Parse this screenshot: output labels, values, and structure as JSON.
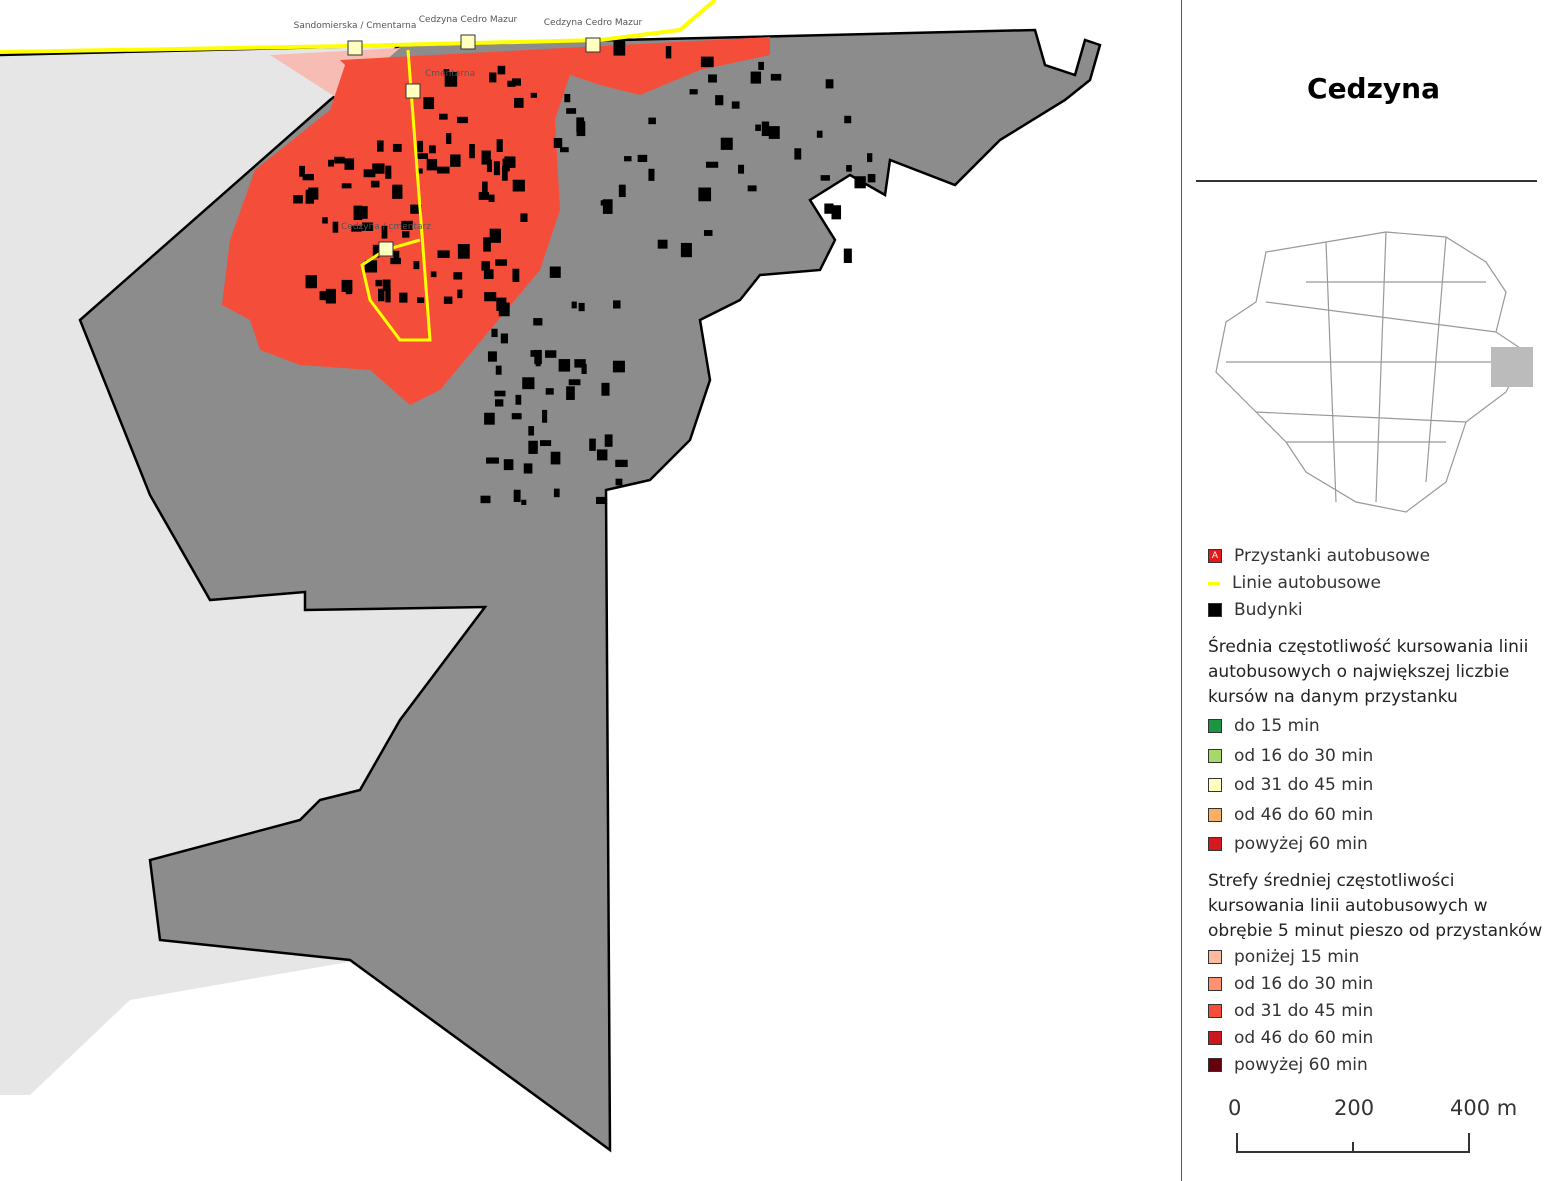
{
  "map": {
    "stop_labels": [
      "Sandomierska / Cmentarna",
      "Cedzyna Cedro Mazur",
      "Cedzyna Cedro Mazur",
      "Cmentarna",
      "Cedzyna / cmentarz"
    ]
  },
  "legend": {
    "title": "Cedzyna",
    "layers": [
      {
        "symbol": "A",
        "label": "Przystanki autobusowe",
        "color": "#e31a1c"
      },
      {
        "label": "Linie autobusowe",
        "color": "#ffff00"
      },
      {
        "label": "Budynki",
        "color": "#000000"
      }
    ],
    "frequency_title": "Średnia częstotliwość kursowania linii autobusowych o największej liczbie kursów na danym przystanku",
    "frequency_items": [
      {
        "label": "do 15 min",
        "color": "#1a9641"
      },
      {
        "label": "od 16 do 30 min",
        "color": "#a6d96a"
      },
      {
        "label": "od 31 do 45 min",
        "color": "#ffffc0"
      },
      {
        "label": "od 46 do 60 min",
        "color": "#fdae61"
      },
      {
        "label": "powyżej 60 min",
        "color": "#d7191c"
      }
    ],
    "zones_title": "Strefy średniej częstotliwości kursowania linii autobusowych w obrębie 5 minut pieszo od przystanków",
    "zones_items": [
      {
        "label": "poniżej 15 min",
        "color": "#fcbba1"
      },
      {
        "label": "od 16 do 30 min",
        "color": "#fc9272"
      },
      {
        "label": "od 31 do 45 min",
        "color": "#f44e3a"
      },
      {
        "label": "od 46 do 60 min",
        "color": "#cb181d"
      },
      {
        "label": "powyżej 60 min",
        "color": "#67000d"
      }
    ]
  },
  "scale": {
    "labels": [
      "0",
      "200",
      "400 m"
    ]
  }
}
